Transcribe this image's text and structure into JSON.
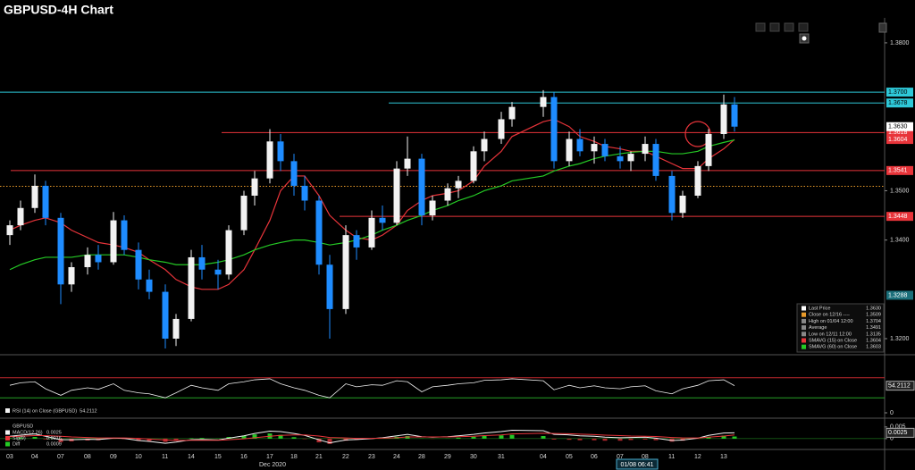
{
  "chart_data": [
    {
      "type": "candlestick",
      "title": "GBPUSD-4H Chart",
      "x_labels": [
        "03",
        "04",
        "07",
        "08",
        "09",
        "10",
        "11",
        "14",
        "15",
        "16",
        "17",
        "18",
        "21",
        "22",
        "23",
        "24",
        "28",
        "29",
        "30",
        "31",
        "04",
        "05",
        "06",
        "07",
        "08",
        "11",
        "12",
        "13"
      ],
      "x_caption": "Dec 2020",
      "timestamp": "01/08 06:41",
      "open": [
        1.341,
        1.343,
        1.3465,
        1.351,
        1.3445,
        1.331,
        1.3345,
        1.337,
        1.3355,
        1.344,
        1.338,
        1.332,
        1.3295,
        1.32,
        1.324,
        1.3365,
        1.334,
        1.333,
        1.342,
        1.349,
        1.3525,
        1.36,
        1.356,
        1.351,
        1.348,
        1.335,
        1.326,
        1.341,
        1.3385,
        1.3445,
        1.3435,
        1.3545,
        1.3565,
        1.345,
        1.348,
        1.3505,
        1.352,
        1.358,
        1.3605,
        1.3645,
        1.367,
        1.369,
        1.356,
        1.3605,
        1.358,
        1.3595,
        1.357,
        1.356,
        1.3575,
        1.3595,
        1.353,
        1.3455,
        1.349,
        1.355,
        1.3615,
        1.3675
      ],
      "high": [
        1.344,
        1.348,
        1.3533,
        1.352,
        1.3455,
        1.3355,
        1.3385,
        1.339,
        1.3457,
        1.345,
        1.3395,
        1.334,
        1.331,
        1.325,
        1.338,
        1.339,
        1.336,
        1.343,
        1.35,
        1.354,
        1.3625,
        1.3615,
        1.3575,
        1.353,
        1.349,
        1.337,
        1.343,
        1.342,
        1.346,
        1.347,
        1.356,
        1.361,
        1.3575,
        1.349,
        1.3515,
        1.353,
        1.359,
        1.362,
        1.366,
        1.368,
        1.3704,
        1.37,
        1.362,
        1.3625,
        1.361,
        1.3605,
        1.359,
        1.358,
        1.361,
        1.3605,
        1.354,
        1.35,
        1.356,
        1.3625,
        1.3695,
        1.369
      ],
      "low": [
        1.339,
        1.342,
        1.3455,
        1.343,
        1.327,
        1.3295,
        1.333,
        1.334,
        1.335,
        1.337,
        1.33,
        1.328,
        1.318,
        1.3185,
        1.3235,
        1.332,
        1.33,
        1.332,
        1.341,
        1.347,
        1.3515,
        1.354,
        1.349,
        1.346,
        1.333,
        1.32,
        1.325,
        1.336,
        1.338,
        1.342,
        1.343,
        1.353,
        1.343,
        1.344,
        1.347,
        1.3485,
        1.3515,
        1.356,
        1.3595,
        1.363,
        1.365,
        1.3545,
        1.355,
        1.357,
        1.3555,
        1.356,
        1.3545,
        1.354,
        1.356,
        1.352,
        1.344,
        1.3445,
        1.3485,
        1.354,
        1.3605,
        1.362
      ],
      "close": [
        1.343,
        1.3465,
        1.351,
        1.3445,
        1.331,
        1.3345,
        1.337,
        1.3355,
        1.344,
        1.338,
        1.332,
        1.3295,
        1.32,
        1.324,
        1.3365,
        1.334,
        1.333,
        1.342,
        1.349,
        1.3525,
        1.36,
        1.356,
        1.351,
        1.348,
        1.335,
        1.326,
        1.341,
        1.3385,
        1.3445,
        1.3435,
        1.3545,
        1.3565,
        1.345,
        1.348,
        1.3505,
        1.352,
        1.358,
        1.3605,
        1.3645,
        1.367,
        1.369,
        1.356,
        1.3605,
        1.358,
        1.3595,
        1.357,
        1.356,
        1.3575,
        1.3595,
        1.353,
        1.3455,
        1.349,
        1.355,
        1.3615,
        1.3675,
        1.363
      ],
      "up_color": "#f2f2f2",
      "down_color": "#1e8cff",
      "series": [
        {
          "name": "SMAVG (15) on Close",
          "last_label": "1.3604",
          "color": "#e8343a",
          "values": [
            1.342,
            1.343,
            1.344,
            1.3445,
            1.3435,
            1.342,
            1.3405,
            1.3395,
            1.339,
            1.3385,
            1.3375,
            1.336,
            1.334,
            1.332,
            1.3305,
            1.33,
            1.33,
            1.331,
            1.334,
            1.338,
            1.344,
            1.35,
            1.353,
            1.353,
            1.349,
            1.345,
            1.342,
            1.3405,
            1.34,
            1.341,
            1.343,
            1.346,
            1.348,
            1.349,
            1.3495,
            1.35,
            1.352,
            1.355,
            1.358,
            1.361,
            1.364,
            1.3645,
            1.363,
            1.361,
            1.36,
            1.359,
            1.3585,
            1.358,
            1.358,
            1.357,
            1.3555,
            1.3545,
            1.3545,
            1.3565,
            1.3585,
            1.3604
          ]
        },
        {
          "name": "SMAVG (60) on Close",
          "last_label": "1.3603",
          "color": "#25c925",
          "values": [
            1.334,
            1.335,
            1.336,
            1.3365,
            1.3365,
            1.3365,
            1.337,
            1.337,
            1.337,
            1.337,
            1.3365,
            1.336,
            1.3355,
            1.335,
            1.335,
            1.335,
            1.3355,
            1.336,
            1.337,
            1.338,
            1.339,
            1.3395,
            1.34,
            1.34,
            1.3395,
            1.339,
            1.3395,
            1.34,
            1.341,
            1.342,
            1.343,
            1.344,
            1.345,
            1.346,
            1.347,
            1.348,
            1.349,
            1.35,
            1.351,
            1.352,
            1.353,
            1.354,
            1.355,
            1.3555,
            1.3565,
            1.357,
            1.3575,
            1.3578,
            1.358,
            1.358,
            1.3575,
            1.3575,
            1.358,
            1.359,
            1.3598,
            1.3603
          ]
        }
      ],
      "ylim": [
        1.3171,
        1.3847
      ],
      "yticks": [
        {
          "value": 1.38,
          "label": "1.3800"
        },
        {
          "value": 1.35,
          "label": "1.3500"
        },
        {
          "value": 1.34,
          "label": "1.3400"
        },
        {
          "value": 1.32,
          "label": "1.3200"
        }
      ],
      "levels": [
        {
          "value": 1.37,
          "label": "1.3700",
          "color": "#2ec8d8"
        },
        {
          "value": 1.3678,
          "label": "1.3678",
          "color": "#2ec8d8"
        },
        {
          "value": 1.3618,
          "label": "1.3618",
          "color": "#e8343a"
        },
        {
          "value": 1.3541,
          "label": "1.3541",
          "color": "#e8343a"
        },
        {
          "value": 1.3448,
          "label": "1.3448",
          "color": "#e8343a"
        }
      ],
      "reference_line": {
        "value": 1.3509,
        "color": "#e89a2a"
      },
      "price_tags": [
        {
          "value": 1.363,
          "label": "1.3630",
          "color": "#ffffff"
        },
        {
          "value": 1.3604,
          "label": "1.3604",
          "color": "#e8343a"
        },
        {
          "value": 1.3288,
          "label": "1.3288",
          "color": "#1b6f7a"
        }
      ],
      "legend": [
        {
          "label": "Last Price",
          "value": "1.3630",
          "color": "#ffffff"
        },
        {
          "label": "Close on 12/16 ----",
          "value": "1.3509",
          "color": "#e89a2a"
        },
        {
          "label": "High on 01/04 12:00",
          "value": "1.3704",
          "color": "#888888"
        },
        {
          "label": "Average",
          "value": "1.3491",
          "color": "#888888"
        },
        {
          "label": "Low on 12/11 12:00",
          "value": "1.3135",
          "color": "#888888"
        }
      ]
    },
    {
      "type": "line",
      "legend": "RSI (14) on Close (GBPUSD)",
      "color": "#f2f2f2",
      "values": [
        55,
        60,
        62,
        48,
        35,
        45,
        50,
        47,
        58,
        45,
        40,
        38,
        30,
        40,
        55,
        50,
        45,
        58,
        62,
        66,
        68,
        58,
        50,
        45,
        35,
        30,
        58,
        52,
        56,
        55,
        64,
        62,
        42,
        52,
        55,
        58,
        60,
        65,
        66,
        68,
        64,
        46,
        55,
        50,
        54,
        50,
        48,
        52,
        54,
        44,
        38,
        48,
        55,
        64,
        66,
        54.2112
      ],
      "ylim": [
        0,
        100
      ],
      "yticks": [
        0
      ],
      "levels": [
        {
          "value": 70,
          "color": "#c0282d"
        },
        {
          "value": 30,
          "color": "#25a025"
        }
      ]
    },
    {
      "type": "macd",
      "legend_title": "GBPUSD",
      "series": [
        {
          "name": "MACD(12,26)",
          "color": "#f2f2f2",
          "values": [
            0.001,
            0.0015,
            0.002,
            0.001,
            -0.0005,
            -0.0005,
            -0.0003,
            -0.0004,
            0.0002,
            0.0001,
            -0.0008,
            -0.0012,
            -0.002,
            -0.0015,
            -0.0005,
            -0.0004,
            -0.0006,
            0.0002,
            0.0012,
            0.0022,
            0.0032,
            0.003,
            0.0022,
            0.0014,
            -0.0005,
            -0.0018,
            -0.0006,
            -0.0004,
            0,
            0.0004,
            0.0012,
            0.0018,
            0.0008,
            0.0006,
            0.0008,
            0.0012,
            0.0018,
            0.0024,
            0.003,
            0.0036,
            0.0034,
            0.0018,
            0.0016,
            0.0012,
            0.001,
            0.0006,
            0.0004,
            0.0005,
            0.0006,
            0.0002,
            -0.0008,
            -0.0006,
            0.0002,
            0.0014,
            0.0024,
            0.0025
          ]
        },
        {
          "name": "Sig(9)",
          "color": "#e8343a",
          "values": [
            0.0008,
            0.001,
            0.0013,
            0.0013,
            0.001,
            0.0007,
            0.0005,
            0.0003,
            0.0003,
            0.0003,
            0.0001,
            -0.0002,
            -0.0006,
            -0.0008,
            -0.0007,
            -0.0007,
            -0.0007,
            -0.0005,
            -0.0001,
            0.0004,
            0.001,
            0.0014,
            0.0016,
            0.0016,
            0.0011,
            0.0005,
            0.0003,
            0.0001,
            0.0001,
            0.0002,
            0.0004,
            0.0007,
            0.0007,
            0.0007,
            0.0007,
            0.0008,
            0.001,
            0.0013,
            0.0016,
            0.002,
            0.0023,
            0.0022,
            0.0021,
            0.0019,
            0.0017,
            0.0015,
            0.0013,
            0.0011,
            0.001,
            0.0009,
            0.0005,
            0.0003,
            0.0003,
            0.0006,
            0.0011,
            0.0016
          ]
        },
        {
          "name": "Diff",
          "color": "#25c925",
          "negative_color": "#b0282d",
          "bar": true,
          "values": [
            0.0002,
            0.0005,
            0.0007,
            -0.0003,
            -0.0015,
            -0.0012,
            -0.0008,
            -0.0007,
            -0.0001,
            -0.0002,
            -0.0009,
            -0.001,
            -0.0014,
            -0.0007,
            0.0002,
            0.0003,
            0.0001,
            0.0007,
            0.0013,
            0.0018,
            0.0022,
            0.0016,
            0.0006,
            -0.0002,
            -0.0016,
            -0.0023,
            -0.0009,
            -0.0005,
            -0.0001,
            0.0002,
            0.0008,
            0.0011,
            0.0001,
            -0.0001,
            0.0001,
            0.0004,
            0.0008,
            0.0011,
            0.0014,
            0.0016,
            0.0011,
            -0.0004,
            -0.0005,
            -0.0007,
            -0.0007,
            -0.0009,
            -0.0009,
            -0.0006,
            -0.0004,
            -0.0007,
            -0.0013,
            -0.0009,
            -0.0001,
            0.0008,
            0.0013,
            0.0009
          ]
        }
      ],
      "ylim": [
        -0.0035,
        0.008
      ],
      "yticks": [
        0.005,
        0
      ]
    }
  ]
}
